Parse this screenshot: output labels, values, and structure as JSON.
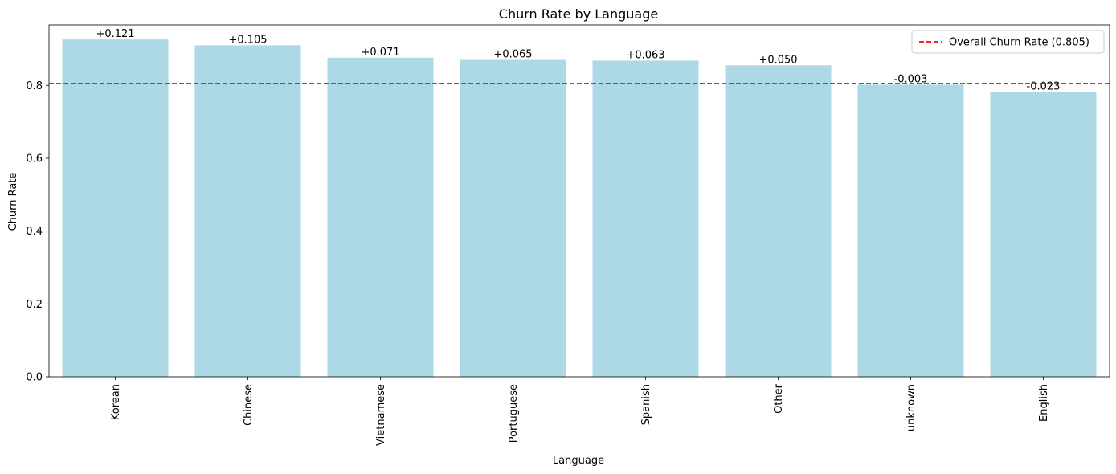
{
  "chart_data": {
    "type": "bar",
    "title": "Churn Rate by Language",
    "xlabel": "Language",
    "ylabel": "Churn Rate",
    "categories": [
      "Korean",
      "Chinese",
      "Vietnamese",
      "Portuguese",
      "Spanish",
      "Other",
      "unknown",
      "English"
    ],
    "values": [
      0.926,
      0.91,
      0.876,
      0.87,
      0.868,
      0.855,
      0.802,
      0.782
    ],
    "data_labels": [
      "+0.121",
      "+0.105",
      "+0.071",
      "+0.065",
      "+0.063",
      "+0.050",
      "-0.003",
      "-0.023"
    ],
    "reference_line": {
      "value": 0.805,
      "label": "Overall Churn Rate (0.805)",
      "color": "#ff0000",
      "style": "dashed"
    },
    "ylim": [
      0,
      0.966
    ],
    "yticks": [
      0.0,
      0.2,
      0.4,
      0.6,
      0.8
    ],
    "ytick_labels": [
      "0.0",
      "0.2",
      "0.4",
      "0.6",
      "0.8"
    ],
    "bar_color": "#add8e6",
    "grid": false,
    "legend_position": "top-right"
  }
}
